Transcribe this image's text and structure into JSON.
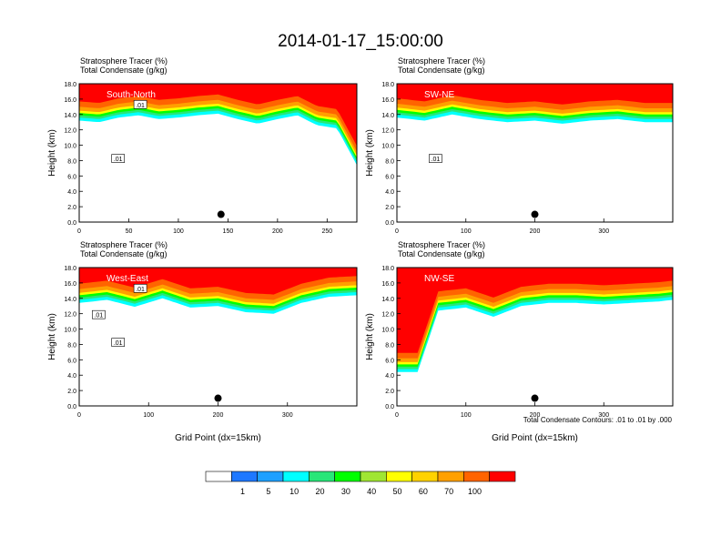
{
  "figure": {
    "title": "2014-01-17_15:00:00",
    "footnote": "Total Condensate Contours: .01 to .01 by .000"
  },
  "colorbar": {
    "labels": [
      "1",
      "5",
      "10",
      "20",
      "30",
      "40",
      "50",
      "60",
      "70",
      "100"
    ],
    "colors": [
      "#ffffff",
      "#1e78ff",
      "#1ea0ff",
      "#00ffff",
      "#28e678",
      "#00ff00",
      "#a0e632",
      "#ffff00",
      "#ffd200",
      "#ffa000",
      "#ff6400",
      "#ff0000"
    ]
  },
  "chart_data": [
    {
      "type": "heatmap",
      "panel": "south-north",
      "subtitle1": "Stratosphere Tracer   (%)",
      "subtitle2": "Total Condensate   (g/kg)",
      "inner_label": "South-North",
      "xlabel": "",
      "ylabel": "Height (km)",
      "xlim": [
        0,
        280
      ],
      "ylim": [
        0,
        18
      ],
      "xticks": [
        "0",
        "50",
        "100",
        "150",
        "200",
        "250"
      ],
      "yticks": [
        "0.0",
        "2.0",
        "4.0",
        "6.0",
        "8.0",
        "10.0",
        "12.0",
        "14.0",
        "16.0",
        "18.0"
      ],
      "marker": {
        "x": 143,
        "y": 1.0
      },
      "contour_labels": [
        ".01",
        ".01"
      ],
      "tracer_boundary_km": {
        "x": [
          0,
          20,
          40,
          60,
          80,
          100,
          120,
          140,
          160,
          180,
          200,
          220,
          240,
          260,
          280
        ],
        "y": [
          13.8,
          13.6,
          14.2,
          14.5,
          14.0,
          14.2,
          14.5,
          14.7,
          14.0,
          13.4,
          14.0,
          14.5,
          13.2,
          12.8,
          8.0
        ]
      }
    },
    {
      "type": "heatmap",
      "panel": "sw-ne",
      "subtitle1": "Stratosphere Tracer   (%)",
      "subtitle2": "Total Condensate   (g/kg)",
      "inner_label": "SW-NE",
      "xlabel": "",
      "ylabel": "Height (km)",
      "xlim": [
        0,
        400
      ],
      "ylim": [
        0,
        18
      ],
      "xticks": [
        "0",
        "100",
        "200",
        "300"
      ],
      "yticks": [
        "0.0",
        "2.0",
        "4.0",
        "6.0",
        "8.0",
        "10.0",
        "12.0",
        "14.0",
        "16.0",
        "18.0"
      ],
      "marker": {
        "x": 200,
        "y": 1.0
      },
      "contour_labels": [
        ".01"
      ],
      "tracer_boundary_km": {
        "x": [
          0,
          40,
          80,
          120,
          160,
          200,
          240,
          280,
          320,
          360,
          400
        ],
        "y": [
          14.2,
          13.8,
          14.6,
          14.0,
          13.6,
          13.8,
          13.4,
          13.8,
          14.0,
          13.6,
          13.6
        ]
      }
    },
    {
      "type": "heatmap",
      "panel": "west-east",
      "subtitle1": "Stratosphere Tracer   (%)",
      "subtitle2": "Total Condensate   (g/kg)",
      "inner_label": "West-East",
      "xlabel": "Grid Point (dx=15km)",
      "ylabel": "Height (km)",
      "xlim": [
        0,
        400
      ],
      "ylim": [
        0,
        18
      ],
      "xticks": [
        "0",
        "100",
        "200",
        "300"
      ],
      "yticks": [
        "0.0",
        "2.0",
        "4.0",
        "6.0",
        "8.0",
        "10.0",
        "12.0",
        "14.0",
        "16.0",
        "18.0"
      ],
      "marker": {
        "x": 200,
        "y": 1.0
      },
      "contour_labels": [
        ".01",
        ".01",
        ".01"
      ],
      "tracer_boundary_km": {
        "x": [
          0,
          40,
          80,
          120,
          160,
          200,
          240,
          280,
          320,
          360,
          400
        ],
        "y": [
          14.0,
          14.4,
          13.5,
          14.6,
          13.4,
          13.6,
          12.8,
          12.6,
          14.0,
          14.8,
          15.0
        ]
      }
    },
    {
      "type": "heatmap",
      "panel": "nw-se",
      "subtitle1": "Stratosphere Tracer   (%)",
      "subtitle2": "Total Condensate   (g/kg)",
      "inner_label": "NW-SE",
      "xlabel": "Grid Point (dx=15km)",
      "ylabel": "Height (km)",
      "xlim": [
        0,
        400
      ],
      "ylim": [
        0,
        18
      ],
      "xticks": [
        "0",
        "100",
        "200",
        "300"
      ],
      "yticks": [
        "0.0",
        "2.0",
        "4.0",
        "6.0",
        "8.0",
        "10.0",
        "12.0",
        "14.0",
        "16.0",
        "18.0"
      ],
      "marker": {
        "x": 200,
        "y": 1.0
      },
      "contour_labels": [],
      "tracer_boundary_km": {
        "x": [
          0,
          30,
          60,
          100,
          140,
          180,
          220,
          260,
          300,
          340,
          380,
          400
        ],
        "y": [
          5.0,
          5.0,
          13.0,
          13.4,
          12.2,
          13.6,
          14.0,
          14.0,
          13.8,
          14.0,
          14.2,
          14.4
        ]
      }
    }
  ]
}
